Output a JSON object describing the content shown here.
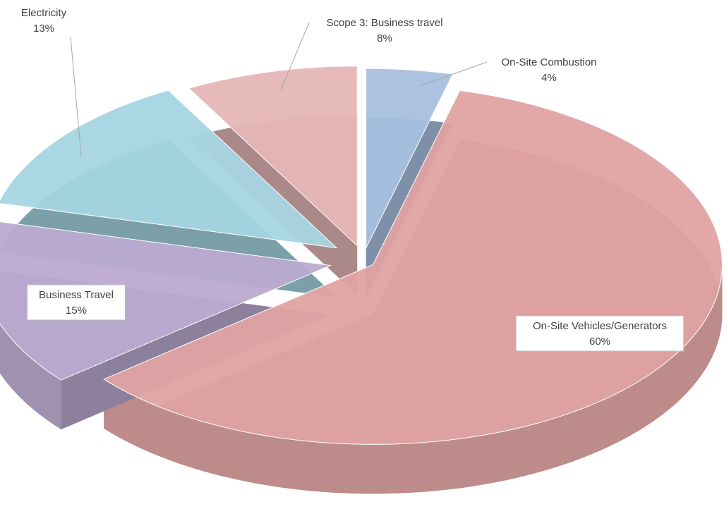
{
  "chart_data": {
    "type": "pie",
    "categories": [
      "On-Site Combustion",
      "On-Site Vehicles/Generators",
      "Business Travel",
      "Electricity",
      "Scope 3: Business travel"
    ],
    "values": [
      4,
      60,
      15,
      13,
      8
    ],
    "value_labels": [
      "4%",
      "60%",
      "15%",
      "13%",
      "8%"
    ],
    "colors": [
      "#a7c0de",
      "#e0a3a3",
      "#bcaad0",
      "#a5d5e2",
      "#e5b6b6"
    ],
    "three_d": true,
    "exploded": true
  }
}
